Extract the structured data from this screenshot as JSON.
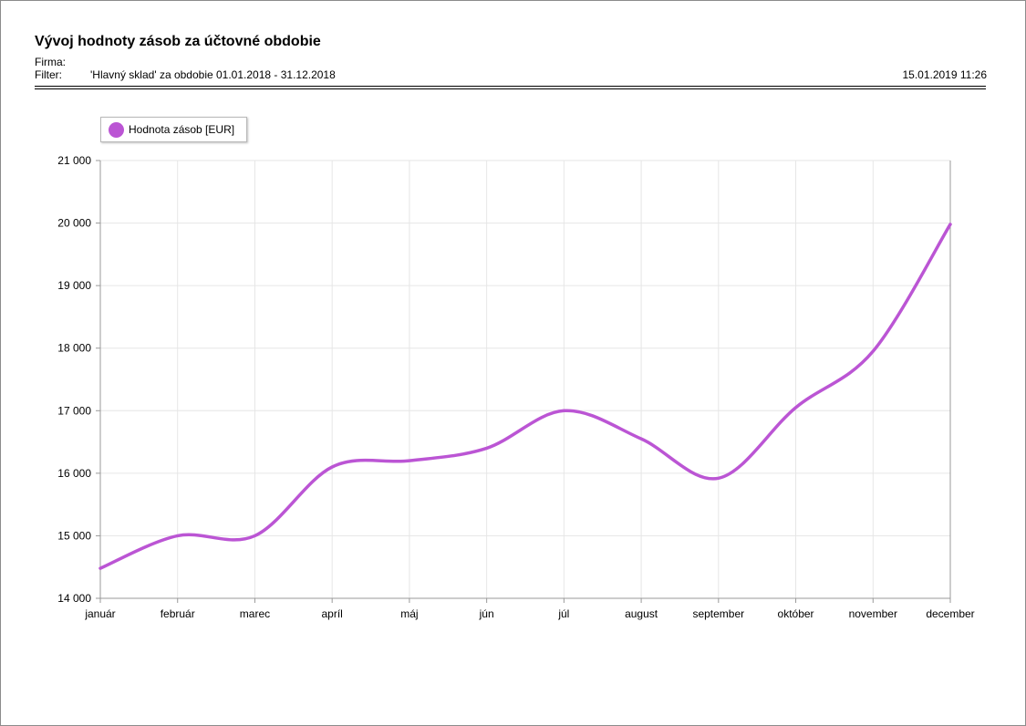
{
  "report": {
    "title": "Vývoj hodnoty zásob za účtovné obdobie",
    "firma_label": "Firma:",
    "firma_value": "",
    "filter_label": "Filter:",
    "filter_value": "'Hlavný sklad' za obdobie 01.01.2018 - 31.12.2018",
    "timestamp": "15.01.2019 11:26"
  },
  "chart_data": {
    "type": "line",
    "categories": [
      "január",
      "február",
      "marec",
      "apríl",
      "máj",
      "jún",
      "júl",
      "august",
      "september",
      "október",
      "november",
      "december"
    ],
    "series": [
      {
        "name": "Hodnota zásob [EUR]",
        "color": "#bb55d4",
        "values": [
          14480,
          15000,
          15000,
          16100,
          16200,
          16400,
          17000,
          16550,
          15920,
          17050,
          17950,
          19980
        ]
      }
    ],
    "ylim": [
      14000,
      21000
    ],
    "yticks": [
      14000,
      15000,
      16000,
      17000,
      18000,
      19000,
      20000,
      21000
    ],
    "ytick_labels": [
      "14 000",
      "15 000",
      "16 000",
      "17 000",
      "18 000",
      "19 000",
      "20 000",
      "21 000"
    ],
    "grid": true,
    "legend_position": "top-left",
    "smooth": true
  }
}
